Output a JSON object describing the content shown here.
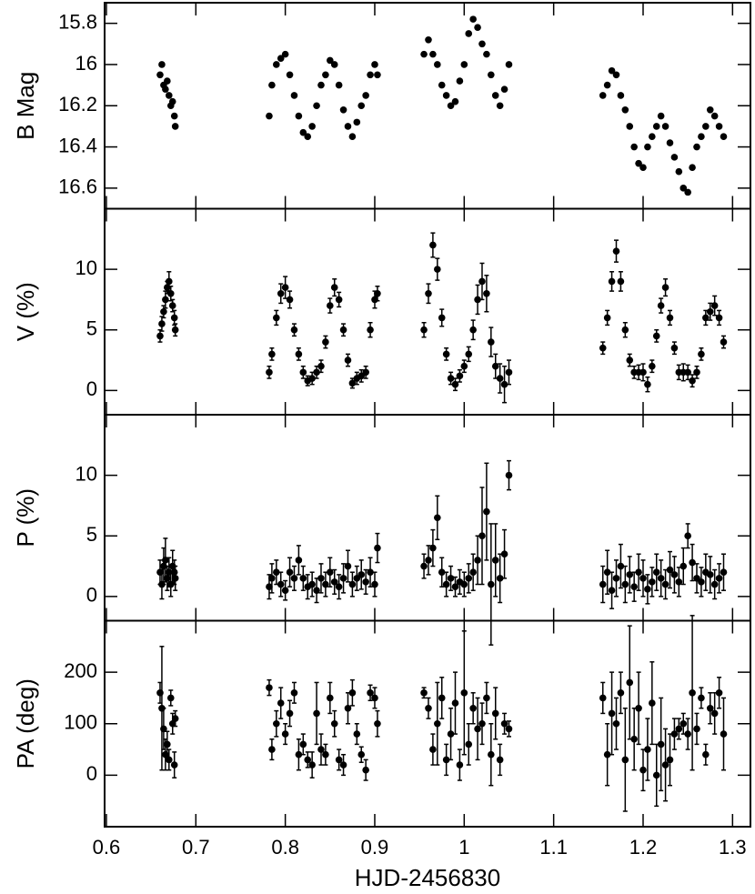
{
  "chart_data": [
    {
      "type": "scatter",
      "ylabel": "B Mag",
      "color": "#000000",
      "xlim": [
        0.598,
        1.32
      ],
      "xticks": [
        0.6,
        0.7,
        0.8,
        0.9,
        1,
        1.1,
        1.2,
        1.3
      ],
      "ylim": [
        16.7,
        15.7
      ],
      "yticks": [
        15.8,
        16,
        16.2,
        16.4,
        16.6
      ],
      "x": [
        0.66,
        0.662,
        0.664,
        0.666,
        0.668,
        0.67,
        0.672,
        0.674,
        0.676,
        0.677,
        0.782,
        0.785,
        0.79,
        0.795,
        0.8,
        0.805,
        0.81,
        0.815,
        0.82,
        0.825,
        0.83,
        0.835,
        0.84,
        0.845,
        0.85,
        0.855,
        0.86,
        0.865,
        0.87,
        0.875,
        0.88,
        0.885,
        0.89,
        0.895,
        0.9,
        0.903,
        0.955,
        0.96,
        0.965,
        0.97,
        0.975,
        0.98,
        0.985,
        0.99,
        0.995,
        1.0,
        1.005,
        1.01,
        1.015,
        1.02,
        1.025,
        1.03,
        1.035,
        1.04,
        1.045,
        1.05,
        1.155,
        1.16,
        1.165,
        1.17,
        1.175,
        1.18,
        1.185,
        1.19,
        1.195,
        1.2,
        1.205,
        1.21,
        1.215,
        1.22,
        1.225,
        1.23,
        1.235,
        1.24,
        1.245,
        1.25,
        1.255,
        1.26,
        1.265,
        1.27,
        1.275,
        1.28,
        1.285,
        1.29
      ],
      "values": [
        16.05,
        16.0,
        16.1,
        16.12,
        16.08,
        16.15,
        16.2,
        16.18,
        16.25,
        16.3,
        16.25,
        16.1,
        16.0,
        15.97,
        15.95,
        16.05,
        16.15,
        16.25,
        16.33,
        16.35,
        16.3,
        16.2,
        16.1,
        16.05,
        15.98,
        16.0,
        16.1,
        16.22,
        16.3,
        16.35,
        16.28,
        16.2,
        16.15,
        16.05,
        16.0,
        16.05,
        15.95,
        15.88,
        15.95,
        16.0,
        16.1,
        16.15,
        16.2,
        16.18,
        16.08,
        16.0,
        15.85,
        15.78,
        15.82,
        15.9,
        15.95,
        16.05,
        16.15,
        16.2,
        16.12,
        16.0,
        16.15,
        16.1,
        16.03,
        16.05,
        16.15,
        16.22,
        16.3,
        16.4,
        16.48,
        16.5,
        16.4,
        16.35,
        16.3,
        16.25,
        16.3,
        16.38,
        16.45,
        16.52,
        16.6,
        16.62,
        16.5,
        16.4,
        16.35,
        16.3,
        16.22,
        16.25,
        16.3,
        16.35
      ]
    },
    {
      "type": "scatter",
      "ylabel": "V (%)",
      "color": "#000000",
      "xlim": [
        0.598,
        1.32
      ],
      "xticks": [
        0.6,
        0.7,
        0.8,
        0.9,
        1,
        1.1,
        1.2,
        1.3
      ],
      "ylim": [
        -2,
        15
      ],
      "yticks": [
        0,
        5,
        10
      ],
      "x": [
        0.66,
        0.662,
        0.664,
        0.666,
        0.668,
        0.67,
        0.672,
        0.674,
        0.676,
        0.677,
        0.782,
        0.785,
        0.79,
        0.795,
        0.8,
        0.805,
        0.81,
        0.815,
        0.82,
        0.825,
        0.83,
        0.835,
        0.84,
        0.845,
        0.85,
        0.855,
        0.86,
        0.865,
        0.87,
        0.875,
        0.88,
        0.885,
        0.89,
        0.895,
        0.9,
        0.903,
        0.955,
        0.96,
        0.965,
        0.97,
        0.975,
        0.98,
        0.985,
        0.99,
        0.995,
        1.0,
        1.005,
        1.01,
        1.015,
        1.02,
        1.025,
        1.03,
        1.035,
        1.04,
        1.045,
        1.05,
        1.155,
        1.16,
        1.165,
        1.17,
        1.175,
        1.18,
        1.185,
        1.19,
        1.195,
        1.2,
        1.205,
        1.21,
        1.215,
        1.22,
        1.225,
        1.23,
        1.235,
        1.24,
        1.245,
        1.25,
        1.255,
        1.26,
        1.265,
        1.27,
        1.275,
        1.28,
        1.285,
        1.29
      ],
      "values": [
        4.5,
        5.5,
        6.5,
        7.5,
        8.5,
        9,
        8,
        7,
        6,
        5,
        1.5,
        3,
        6,
        8,
        8.5,
        7.5,
        5,
        3,
        1.5,
        0.8,
        1,
        1.5,
        2,
        4,
        7,
        8.5,
        7.5,
        5,
        2.5,
        0.6,
        1,
        1.2,
        1.5,
        5,
        7.5,
        8,
        5,
        8,
        12,
        10,
        6,
        3,
        1,
        0.5,
        1.2,
        2,
        3,
        5,
        7.5,
        9,
        8,
        4,
        2,
        1,
        0.5,
        1.5,
        3.5,
        6,
        9,
        11.5,
        9,
        5,
        2.5,
        1.5,
        1.5,
        1.5,
        0.5,
        2,
        4.5,
        7,
        8.5,
        6,
        3.5,
        1.5,
        1.5,
        1.5,
        0.8,
        1.5,
        3,
        6,
        6.5,
        7,
        6,
        4
      ],
      "errors": [
        0.5,
        0.6,
        0.5,
        0.7,
        0.5,
        0.8,
        0.6,
        0.5,
        0.6,
        0.5,
        0.5,
        0.5,
        0.6,
        0.8,
        0.9,
        0.7,
        0.5,
        0.5,
        0.5,
        0.4,
        0.5,
        0.5,
        0.5,
        0.5,
        0.6,
        0.7,
        0.6,
        0.5,
        0.5,
        0.4,
        0.5,
        0.5,
        0.5,
        0.6,
        0.7,
        0.6,
        0.6,
        0.8,
        1,
        0.9,
        0.7,
        0.5,
        0.5,
        0.5,
        0.5,
        0.5,
        0.6,
        0.8,
        1.2,
        1.5,
        1.5,
        1.2,
        1,
        1.2,
        1.5,
        1,
        0.5,
        0.6,
        0.8,
        0.9,
        0.8,
        0.6,
        0.5,
        0.5,
        0.6,
        0.7,
        0.6,
        0.5,
        0.5,
        0.6,
        0.7,
        0.6,
        0.5,
        0.6,
        0.7,
        0.6,
        0.5,
        0.5,
        0.5,
        0.6,
        0.7,
        0.8,
        0.6,
        0.5
      ]
    },
    {
      "type": "scatter",
      "ylabel": "P (%)",
      "color": "#000000",
      "xlim": [
        0.598,
        1.32
      ],
      "xticks": [
        0.6,
        0.7,
        0.8,
        0.9,
        1,
        1.1,
        1.2,
        1.3
      ],
      "ylim": [
        -2,
        15
      ],
      "yticks": [
        0,
        5,
        10
      ],
      "x": [
        0.66,
        0.662,
        0.664,
        0.666,
        0.668,
        0.67,
        0.672,
        0.674,
        0.676,
        0.677,
        0.782,
        0.785,
        0.79,
        0.795,
        0.8,
        0.805,
        0.81,
        0.815,
        0.82,
        0.825,
        0.83,
        0.835,
        0.84,
        0.845,
        0.85,
        0.855,
        0.86,
        0.865,
        0.87,
        0.875,
        0.88,
        0.885,
        0.89,
        0.895,
        0.9,
        0.903,
        0.955,
        0.96,
        0.965,
        0.97,
        0.975,
        0.98,
        0.985,
        0.99,
        0.995,
        1.0,
        1.005,
        1.01,
        1.015,
        1.02,
        1.025,
        1.03,
        1.035,
        1.04,
        1.045,
        1.05,
        1.155,
        1.16,
        1.165,
        1.17,
        1.175,
        1.18,
        1.185,
        1.19,
        1.195,
        1.2,
        1.205,
        1.21,
        1.215,
        1.22,
        1.225,
        1.23,
        1.235,
        1.24,
        1.245,
        1.25,
        1.255,
        1.26,
        1.265,
        1.27,
        1.275,
        1.28,
        1.285,
        1.29
      ],
      "values": [
        2,
        1,
        2.5,
        3,
        1.5,
        2,
        1,
        2.5,
        2,
        1.5,
        0.8,
        1.5,
        2,
        1,
        0.5,
        2,
        1.5,
        3,
        1.5,
        0.8,
        1,
        0.5,
        1.5,
        1,
        2,
        1.2,
        0.8,
        1.5,
        2.5,
        1,
        1.5,
        1.8,
        1.2,
        2,
        1,
        4,
        2.5,
        3,
        4,
        6.5,
        2,
        1,
        1.5,
        0.8,
        1.2,
        1,
        1.5,
        2,
        3,
        5,
        7,
        1,
        3,
        1.5,
        3.5,
        10,
        1,
        2,
        0.5,
        1.5,
        2.5,
        1,
        1.8,
        0.8,
        2,
        1.5,
        0.6,
        1.2,
        2,
        1.5,
        1,
        2.2,
        1.8,
        1.2,
        2.5,
        5,
        2.8,
        1.5,
        1.2,
        2,
        1.8,
        1,
        1.5,
        2
      ],
      "errors": [
        1,
        1.2,
        1.5,
        1.8,
        1,
        1.2,
        1,
        1.3,
        1,
        1,
        1,
        1.2,
        1,
        1,
        0.8,
        1.2,
        1,
        1.2,
        1,
        1,
        1,
        1,
        1.2,
        1,
        1.2,
        1,
        1,
        1.2,
        1.3,
        1,
        1,
        1.2,
        1,
        1.2,
        1,
        1.2,
        1,
        1.2,
        1.5,
        1.8,
        1.2,
        1,
        1,
        0.8,
        1,
        1,
        1.2,
        1.5,
        2,
        4,
        4,
        5,
        3,
        2,
        2,
        1.2,
        1.5,
        1.8,
        1.5,
        1.5,
        1.8,
        1.5,
        1.5,
        1.2,
        1.5,
        1.5,
        1.2,
        1.2,
        1.5,
        1.5,
        1.2,
        1.5,
        1.5,
        1.2,
        1.5,
        1,
        1.5,
        1.2,
        1.2,
        1.5,
        1.5,
        1.2,
        1.2,
        1.5
      ]
    },
    {
      "type": "scatter",
      "ylabel": "PA (deg)",
      "xlabel": "HJD-2456830",
      "color": "#000000",
      "xlim": [
        0.598,
        1.32
      ],
      "xticks": [
        0.6,
        0.7,
        0.8,
        0.9,
        1,
        1.1,
        1.2,
        1.3
      ],
      "ylim": [
        -100,
        300
      ],
      "yticks": [
        0,
        100,
        200
      ],
      "x": [
        0.66,
        0.662,
        0.664,
        0.666,
        0.668,
        0.67,
        0.672,
        0.674,
        0.676,
        0.677,
        0.782,
        0.785,
        0.79,
        0.795,
        0.8,
        0.805,
        0.81,
        0.815,
        0.82,
        0.825,
        0.83,
        0.835,
        0.84,
        0.845,
        0.85,
        0.855,
        0.86,
        0.865,
        0.87,
        0.875,
        0.88,
        0.885,
        0.89,
        0.895,
        0.9,
        0.903,
        0.955,
        0.96,
        0.965,
        0.97,
        0.975,
        0.98,
        0.985,
        0.99,
        0.995,
        1.0,
        1.005,
        1.01,
        1.015,
        1.02,
        1.025,
        1.03,
        1.035,
        1.04,
        1.045,
        1.05,
        1.155,
        1.16,
        1.165,
        1.17,
        1.175,
        1.18,
        1.185,
        1.19,
        1.195,
        1.2,
        1.205,
        1.21,
        1.215,
        1.22,
        1.225,
        1.23,
        1.235,
        1.24,
        1.245,
        1.25,
        1.255,
        1.26,
        1.265,
        1.27,
        1.275,
        1.28,
        1.285,
        1.29
      ],
      "values": [
        160,
        130,
        90,
        40,
        60,
        30,
        150,
        100,
        20,
        110,
        170,
        50,
        100,
        140,
        80,
        120,
        160,
        40,
        60,
        30,
        20,
        120,
        50,
        40,
        150,
        100,
        30,
        20,
        130,
        160,
        80,
        40,
        10,
        160,
        150,
        100,
        160,
        130,
        50,
        100,
        150,
        30,
        80,
        140,
        20,
        160,
        60,
        130,
        90,
        100,
        150,
        40,
        120,
        30,
        100,
        90,
        150,
        40,
        120,
        100,
        160,
        30,
        180,
        70,
        130,
        10,
        50,
        140,
        0,
        60,
        20,
        30,
        80,
        90,
        100,
        80,
        160,
        90,
        150,
        40,
        130,
        120,
        160,
        80
      ],
      "errors": [
        20,
        120,
        40,
        30,
        25,
        20,
        15,
        20,
        25,
        15,
        15,
        20,
        25,
        30,
        20,
        25,
        20,
        30,
        20,
        15,
        25,
        60,
        30,
        20,
        30,
        25,
        20,
        20,
        30,
        25,
        20,
        15,
        20,
        15,
        20,
        25,
        10,
        20,
        30,
        80,
        40,
        30,
        50,
        60,
        30,
        120,
        40,
        30,
        60,
        40,
        30,
        60,
        50,
        30,
        20,
        15,
        30,
        60,
        80,
        50,
        40,
        100,
        110,
        60,
        70,
        40,
        60,
        80,
        60,
        90,
        70,
        50,
        30,
        20,
        20,
        30,
        150,
        30,
        20,
        20,
        30,
        40,
        30,
        70
      ]
    }
  ]
}
